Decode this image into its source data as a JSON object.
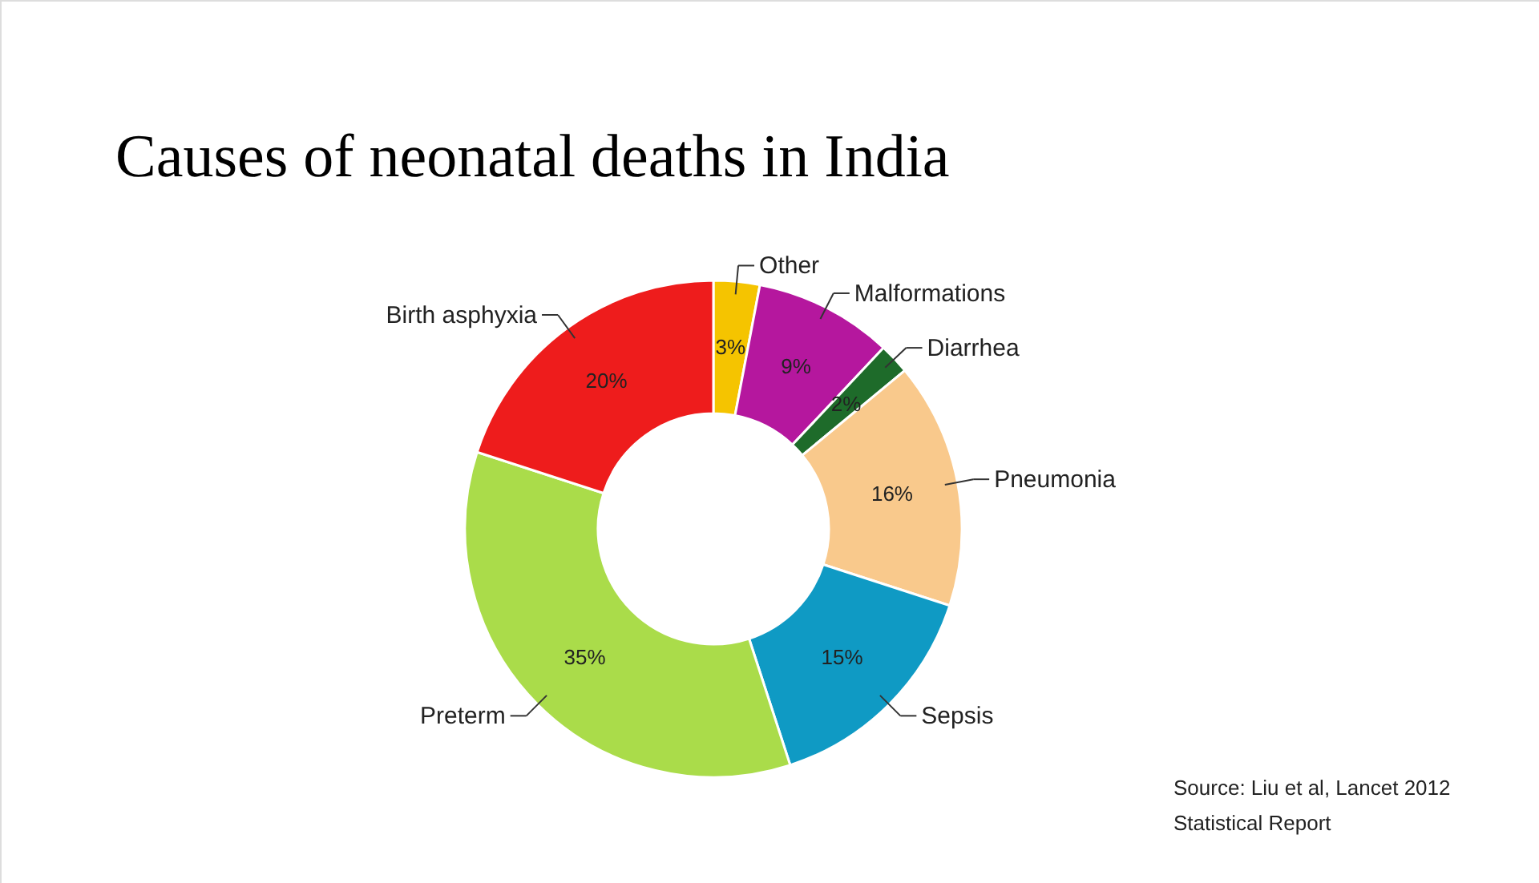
{
  "chart_data": {
    "type": "donut",
    "title": "Causes of neonatal deaths in India",
    "categories": [
      "Other",
      "Malformations",
      "Diarrhea",
      "Pneumonia",
      "Sepsis",
      "Preterm",
      "Birth asphyxia"
    ],
    "values": [
      3,
      9,
      2,
      16,
      15,
      35,
      20
    ],
    "value_labels": [
      "3%",
      "9%",
      "2%",
      "16%",
      "15%",
      "35%",
      "20%"
    ],
    "colors": [
      "#f5c400",
      "#b5179e",
      "#1e6b2a",
      "#f9c98c",
      "#0f9ac4",
      "#aadc4a",
      "#ee1c1c"
    ],
    "annotations": [
      "Source: Liu et al, Lancet 2012",
      "Statistical Report"
    ]
  }
}
